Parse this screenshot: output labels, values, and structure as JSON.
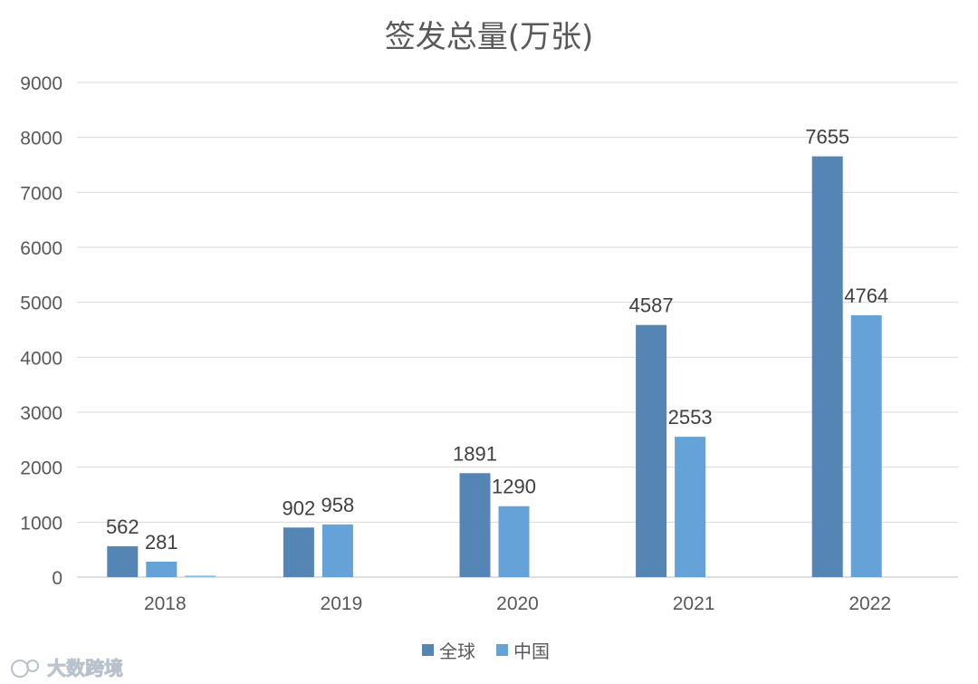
{
  "chart_data": {
    "type": "bar",
    "title": "签发总量(万张)",
    "categories": [
      "2018",
      "2019",
      "2020",
      "2021",
      "2022"
    ],
    "series": [
      {
        "name": "全球",
        "values": [
          562,
          902,
          1891,
          4587,
          7655
        ],
        "color": "#5585b5"
      },
      {
        "name": "中国",
        "values": [
          281,
          958,
          1290,
          2553,
          4764
        ],
        "color": "#64a2d8"
      },
      {
        "values": [
          28,
          null,
          null,
          null,
          null
        ],
        "color": "#8cbde8"
      }
    ],
    "yticks": [
      0,
      1000,
      2000,
      3000,
      4000,
      5000,
      6000,
      7000,
      8000,
      9000
    ],
    "ylim": [
      0,
      9000
    ],
    "grid": true,
    "legend_position": "bottom"
  },
  "watermark": {
    "text": "大数跨境"
  }
}
